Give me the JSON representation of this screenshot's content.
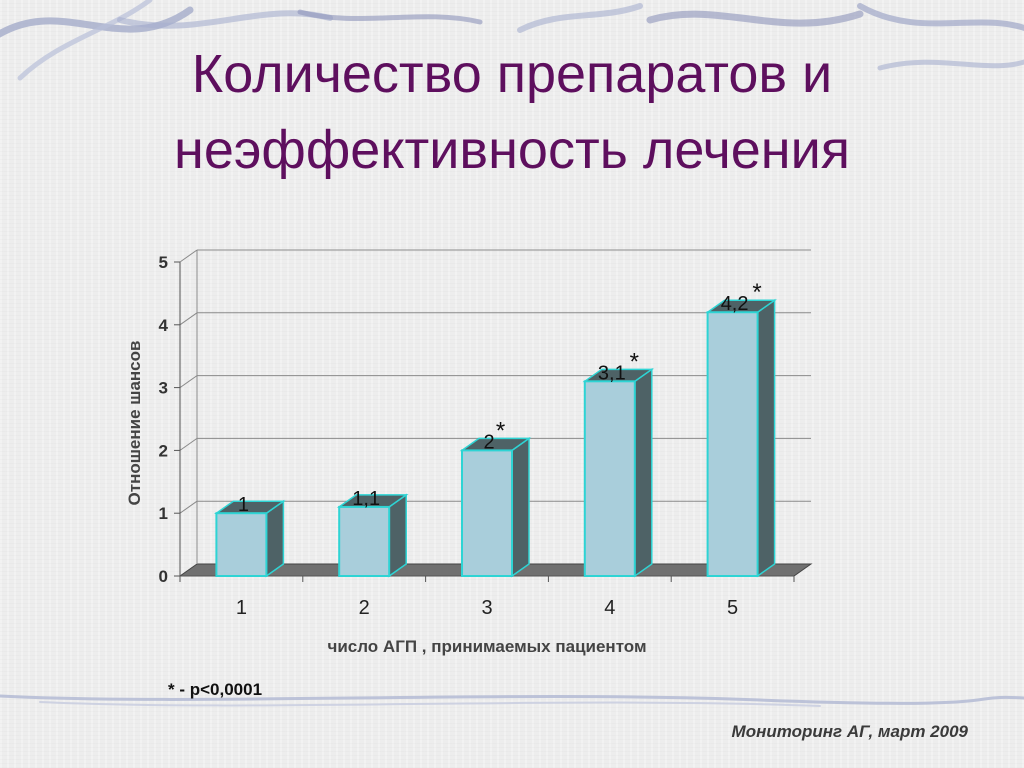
{
  "slide": {
    "title_line1": "Количество препаратов и",
    "title_line2": "неэффективность лечения",
    "footnote": "* - p<0,0001",
    "source": "Мониторинг АГ, март 2009"
  },
  "colors": {
    "title": "#5e0f5e",
    "bar_front": "#a9cedb",
    "bar_outline": "#2ed4d4",
    "bar_side": "#4e6266",
    "floor": "#707070",
    "grid": "#8a8a8a"
  },
  "chart_data": {
    "type": "bar",
    "title": "",
    "categories": [
      "1",
      "2",
      "3",
      "4",
      "5"
    ],
    "values": [
      1,
      1.1,
      2,
      3.1,
      4.2
    ],
    "data_labels": [
      "1",
      "1,1",
      "2",
      "3,1",
      "4,2"
    ],
    "significant": [
      false,
      false,
      true,
      true,
      true
    ],
    "significance_marker": "*",
    "xlabel": "число АГП , принимаемых пациентом",
    "ylabel": "Отношение шансов",
    "ylim": [
      0,
      5
    ],
    "yticks": [
      "0",
      "1",
      "2",
      "3",
      "4",
      "5"
    ],
    "grid": true,
    "legend": "none"
  }
}
